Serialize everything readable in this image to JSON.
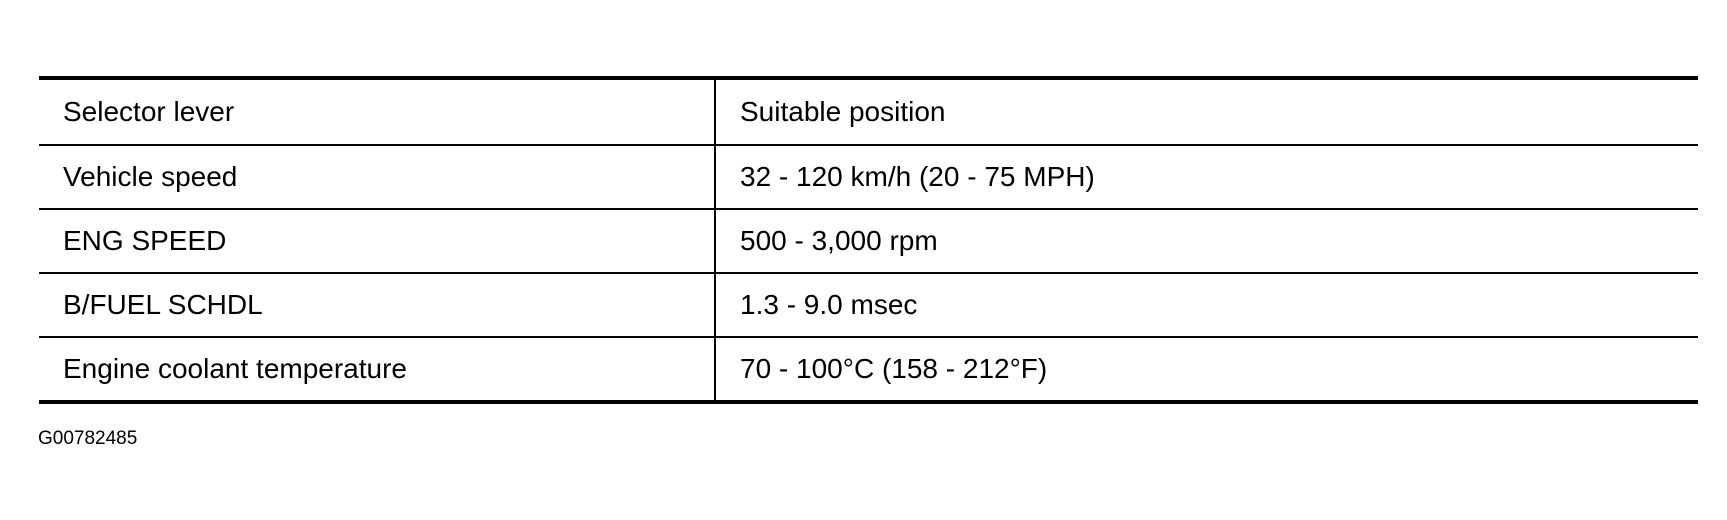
{
  "table": {
    "header": [
      "Selector lever",
      "Suitable position"
    ],
    "rows": [
      [
        "Vehicle speed",
        "32 - 120 km/h (20 - 75 MPH)"
      ],
      [
        "ENG SPEED",
        "500 - 3,000 rpm"
      ],
      [
        "B/FUEL SCHDL",
        "1.3 - 9.0 msec"
      ],
      [
        "Engine coolant temperature",
        "70 - 100°C (158 - 212°F)"
      ]
    ]
  },
  "figure_id": "G00782485"
}
